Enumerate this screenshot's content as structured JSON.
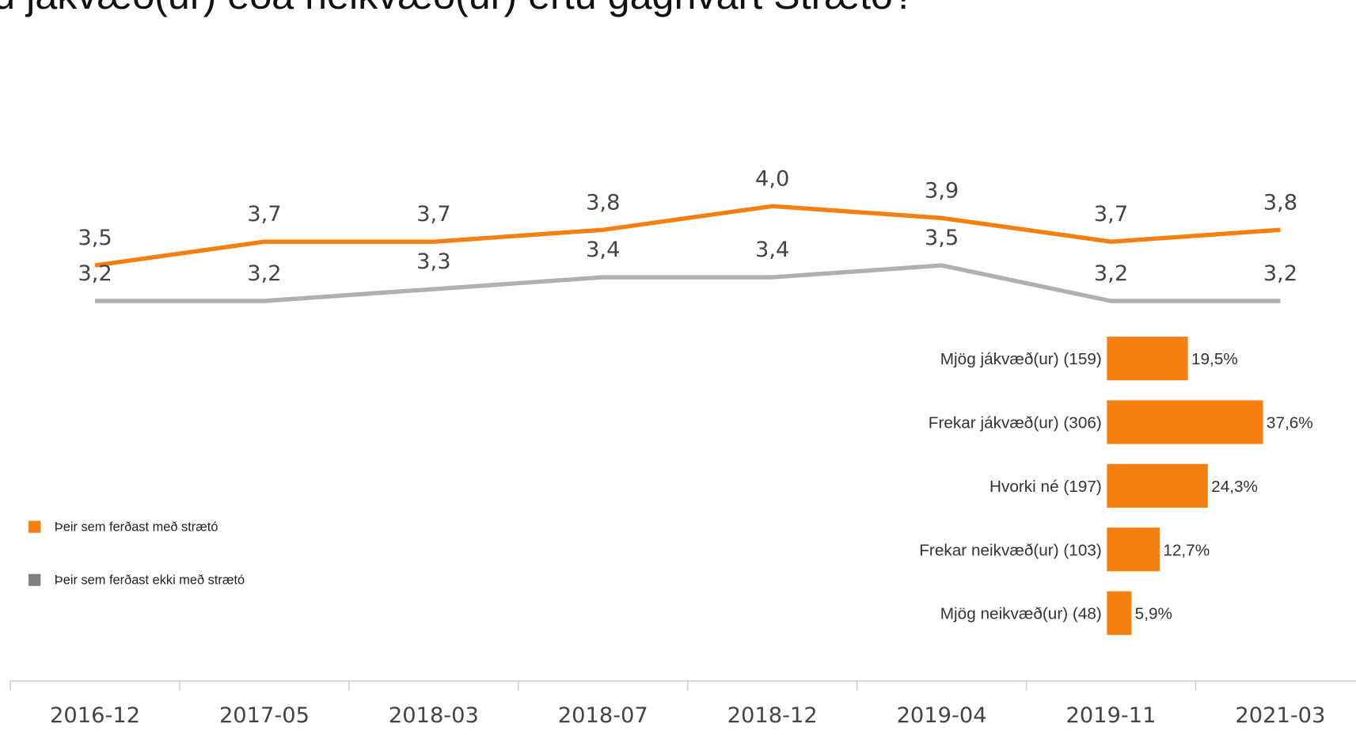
{
  "chart_data": [
    {
      "type": "line",
      "title": "u jákvæð(ur) eða neikvæð(ur) ertu gagnvart Strætó?",
      "categories": [
        "2016-12",
        "2017-05",
        "2018-03",
        "2018-07",
        "2018-12",
        "2019-04",
        "2019-11",
        "2021-03"
      ],
      "series": [
        {
          "name": "Þeir sem ferðast með strætó",
          "color": "#f5800f",
          "values": [
            3.5,
            3.7,
            3.7,
            3.8,
            4.0,
            3.9,
            3.7,
            3.8
          ],
          "value_labels": [
            "3,5",
            "3,7",
            "3,7",
            "3,8",
            "4,0",
            "3,9",
            "3,7",
            "3,8"
          ]
        },
        {
          "name": "Þeir sem ferðast ekki með strætó",
          "color": "#b0b0b0",
          "legend_color": "#808080",
          "values": [
            3.2,
            3.2,
            3.3,
            3.4,
            3.4,
            3.5,
            3.2,
            3.2
          ],
          "value_labels": [
            "3,2",
            "3,2",
            "3,3",
            "3,4",
            "3,4",
            "3,5",
            "3,2",
            "3,2"
          ]
        }
      ],
      "ylim": [
        3.0,
        4.2
      ],
      "legend": "left"
    },
    {
      "type": "hbar",
      "categories": [
        "Mjög jákvæð(ur) (159)",
        "Frekar jákvæð(ur) (306)",
        "Hvorki né (197)",
        "Frekar neikvæð(ur) (103)",
        "Mjög neikvæð(ur) (48)"
      ],
      "values": [
        19.5,
        37.6,
        24.3,
        12.7,
        5.9
      ],
      "value_labels": [
        "19,5%",
        "37,6%",
        "24,3%",
        "12,7%",
        "5,9%"
      ],
      "color": "#f5800f",
      "xlim": [
        0,
        40
      ]
    }
  ]
}
